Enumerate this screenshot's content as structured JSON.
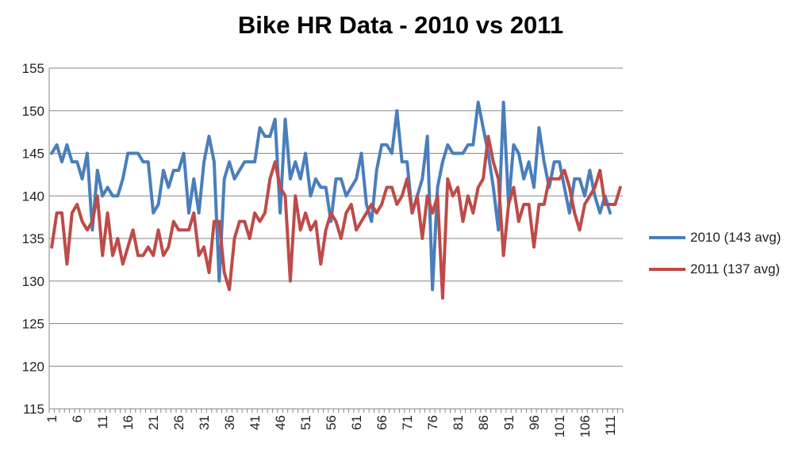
{
  "chart_data": {
    "type": "line",
    "title": "Bike HR Data - 2010 vs 2011",
    "xlabel": "",
    "ylabel": "",
    "ylim": [
      115,
      155
    ],
    "y_ticks": [
      115,
      120,
      125,
      130,
      135,
      140,
      145,
      150,
      155
    ],
    "x_ticks": [
      1,
      6,
      11,
      16,
      21,
      26,
      31,
      36,
      41,
      46,
      51,
      56,
      61,
      66,
      71,
      76,
      81,
      86,
      91,
      96,
      101,
      106,
      111
    ],
    "legend_position": "right",
    "grid": "horizontal",
    "series": [
      {
        "name": "2010 (143 avg)",
        "color": "#4a7ebb",
        "values": [
          145,
          146,
          144,
          146,
          144,
          144,
          142,
          145,
          136,
          143,
          140,
          141,
          140,
          140,
          142,
          145,
          145,
          145,
          144,
          144,
          138,
          139,
          143,
          141,
          143,
          143,
          145,
          138,
          142,
          138,
          144,
          147,
          144,
          130,
          142,
          144,
          142,
          143,
          144,
          144,
          144,
          148,
          147,
          147,
          149,
          138,
          149,
          142,
          144,
          142,
          145,
          140,
          142,
          141,
          141,
          137,
          142,
          142,
          140,
          141,
          142,
          145,
          139,
          137,
          143,
          146,
          146,
          145,
          150,
          144,
          144,
          138,
          140,
          142,
          147,
          129,
          141,
          144,
          146,
          145,
          145,
          145,
          146,
          146,
          151,
          148,
          145,
          141,
          136,
          151,
          139,
          146,
          145,
          142,
          144,
          141,
          148,
          144,
          141,
          144,
          144,
          141,
          138,
          142,
          142,
          140,
          143,
          140,
          138,
          140,
          138
        ]
      },
      {
        "name": "2011 (137 avg)",
        "color": "#be4b48",
        "values": [
          134,
          138,
          138,
          132,
          138,
          139,
          137,
          136,
          137,
          140,
          133,
          138,
          133,
          135,
          132,
          134,
          136,
          133,
          133,
          134,
          133,
          136,
          133,
          134,
          137,
          136,
          136,
          136,
          138,
          133,
          134,
          131,
          137,
          137,
          131,
          129,
          135,
          137,
          137,
          135,
          138,
          137,
          138,
          142,
          144,
          141,
          140,
          130,
          140,
          136,
          138,
          136,
          137,
          132,
          136,
          138,
          137,
          135,
          138,
          139,
          136,
          137,
          138,
          139,
          138,
          139,
          141,
          141,
          139,
          140,
          142,
          138,
          140,
          135,
          140,
          138,
          140,
          128,
          142,
          140,
          141,
          137,
          140,
          138,
          141,
          142,
          147,
          144,
          142,
          133,
          139,
          141,
          137,
          139,
          139,
          134,
          139,
          139,
          142,
          142,
          142,
          143,
          141,
          138,
          136,
          139,
          140,
          141,
          143,
          139,
          139,
          139,
          141
        ]
      }
    ]
  }
}
